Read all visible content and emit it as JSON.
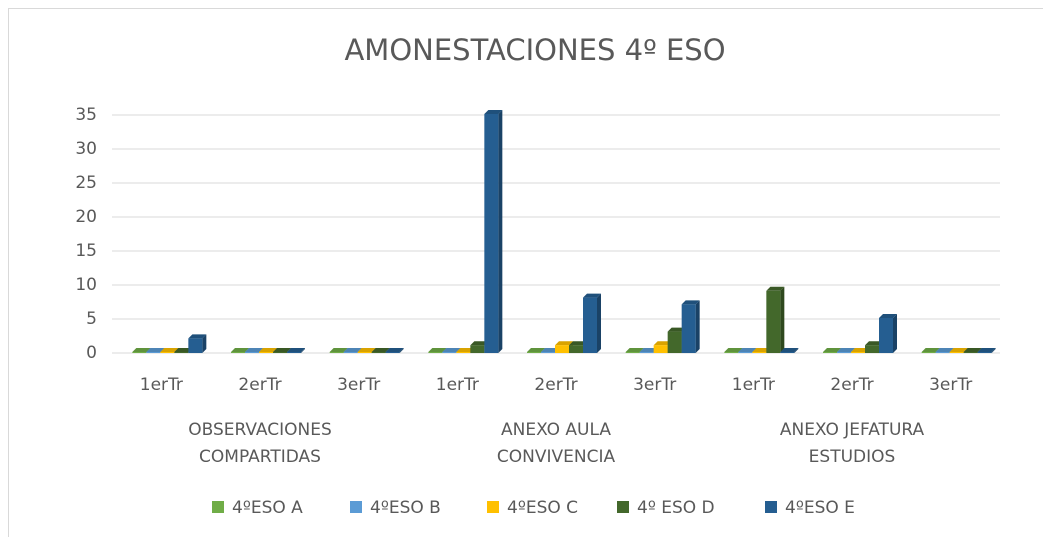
{
  "chart_data": {
    "type": "bar3d",
    "title": "AMONESTACIONES 4º ESO",
    "categories": [
      "1erTr",
      "2erTr",
      "3erTr",
      "1erTr",
      "2erTr",
      "3erTr",
      "1erTr",
      "2erTr",
      "3erTr"
    ],
    "groups": [
      [
        "OBSERVACIONES",
        "COMPARTIDAS"
      ],
      [
        "ANEXO AULA",
        "CONVIVENCIA"
      ],
      [
        "ANEXO JEFATURA",
        "ESTUDIOS"
      ]
    ],
    "series": [
      {
        "name": "4ºESO A",
        "color": "#70ad47",
        "values": [
          0,
          0,
          0,
          0,
          0,
          0,
          0,
          0,
          0
        ]
      },
      {
        "name": "4ºESO B",
        "color": "#5b9bd5",
        "values": [
          0,
          0,
          0,
          0,
          0,
          0,
          0,
          0,
          0
        ]
      },
      {
        "name": "4ºESO C",
        "color": "#ffc000",
        "values": [
          0,
          0,
          0,
          0,
          1,
          1,
          0,
          0,
          0
        ]
      },
      {
        "name": "4º ESO D",
        "color": "#43682b",
        "values": [
          0,
          0,
          0,
          1,
          1,
          3,
          9,
          1,
          0
        ]
      },
      {
        "name": "4ºESO E",
        "color": "#255e91",
        "values": [
          2,
          0,
          0,
          35,
          8,
          7,
          0,
          5,
          0
        ]
      }
    ],
    "ylim": [
      0,
      35
    ],
    "yticks": [
      0,
      5,
      10,
      15,
      20,
      25,
      30,
      35
    ],
    "grid": true,
    "legend": "bottom"
  }
}
